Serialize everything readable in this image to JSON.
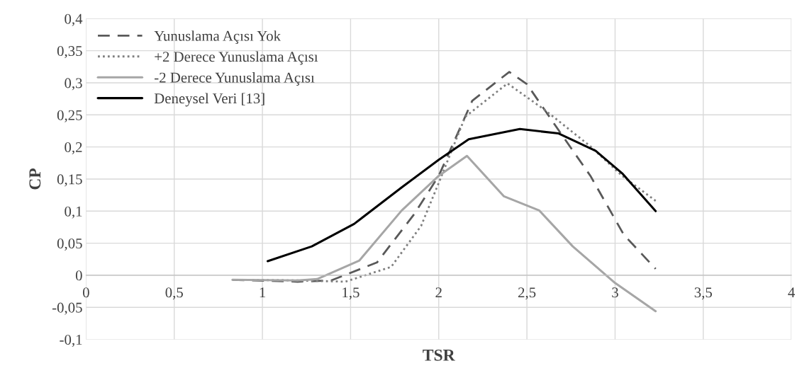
{
  "chart_data": {
    "type": "line",
    "xlabel": "TSR",
    "ylabel": "CP",
    "xlim": [
      0,
      4
    ],
    "xticks": [
      {
        "value": 0,
        "label": "0"
      },
      {
        "value": 0.5,
        "label": "0,5"
      },
      {
        "value": 1,
        "label": "1"
      },
      {
        "value": 1.5,
        "label": "1,5"
      },
      {
        "value": 2,
        "label": "2"
      },
      {
        "value": 2.5,
        "label": "2,5"
      },
      {
        "value": 3,
        "label": "3"
      },
      {
        "value": 3.5,
        "label": "3,5"
      },
      {
        "value": 4,
        "label": "4"
      }
    ],
    "ylim": [
      -0.1,
      0.4
    ],
    "yticks": [
      {
        "value": -0.1,
        "label": "-0,1"
      },
      {
        "value": -0.05,
        "label": "-0,05"
      },
      {
        "value": 0,
        "label": "0"
      },
      {
        "value": 0.05,
        "label": "0,05"
      },
      {
        "value": 0.1,
        "label": "0,1"
      },
      {
        "value": 0.15,
        "label": "0,15"
      },
      {
        "value": 0.2,
        "label": "0,2"
      },
      {
        "value": 0.25,
        "label": "0,25"
      },
      {
        "value": 0.3,
        "label": "0,3"
      },
      {
        "value": 0.35,
        "label": "0,35"
      },
      {
        "value": 0.4,
        "label": "0,4"
      }
    ],
    "grid": true,
    "legend": "top left",
    "marker": "none",
    "series": [
      {
        "name": "Yunuslama Açısı Yok",
        "color": "#595959",
        "line_style": "dashed",
        "x": [
          0.83,
          1.2,
          1.39,
          1.65,
          1.86,
          2.0,
          2.19,
          2.4,
          2.5,
          2.68,
          2.86,
          3.05,
          3.23
        ],
        "values": [
          -0.007,
          -0.01,
          -0.008,
          0.02,
          0.095,
          0.155,
          0.272,
          0.317,
          0.298,
          0.226,
          0.155,
          0.063,
          0.01
        ]
      },
      {
        "name": "+2 Derece Yunuslama Açısı",
        "color": "#7f7f7f",
        "line_style": "dotted",
        "x": [
          0.83,
          1.2,
          1.47,
          1.73,
          1.9,
          2.0,
          2.15,
          2.39,
          2.6,
          2.86,
          3.04,
          3.23
        ],
        "values": [
          -0.007,
          -0.008,
          -0.01,
          0.013,
          0.077,
          0.144,
          0.247,
          0.299,
          0.258,
          0.201,
          0.155,
          0.116
        ]
      },
      {
        "name": "-2 Derece Yunuslama Açısı",
        "color": "#a6a6a6",
        "line_style": "solid",
        "x": [
          0.83,
          1.2,
          1.31,
          1.55,
          1.79,
          2.0,
          2.16,
          2.37,
          2.57,
          2.76,
          3.0,
          3.23
        ],
        "values": [
          -0.007,
          -0.008,
          -0.006,
          0.023,
          0.101,
          0.155,
          0.186,
          0.123,
          0.101,
          0.045,
          -0.012,
          -0.056
        ]
      },
      {
        "name": "Deneysel Veri [13]",
        "color": "#000000",
        "line_style": "solid",
        "x": [
          1.03,
          1.28,
          1.52,
          1.79,
          2.0,
          2.17,
          2.46,
          2.68,
          2.89,
          3.04,
          3.23
        ],
        "values": [
          0.022,
          0.045,
          0.08,
          0.137,
          0.18,
          0.212,
          0.228,
          0.221,
          0.194,
          0.159,
          0.1
        ]
      }
    ]
  }
}
